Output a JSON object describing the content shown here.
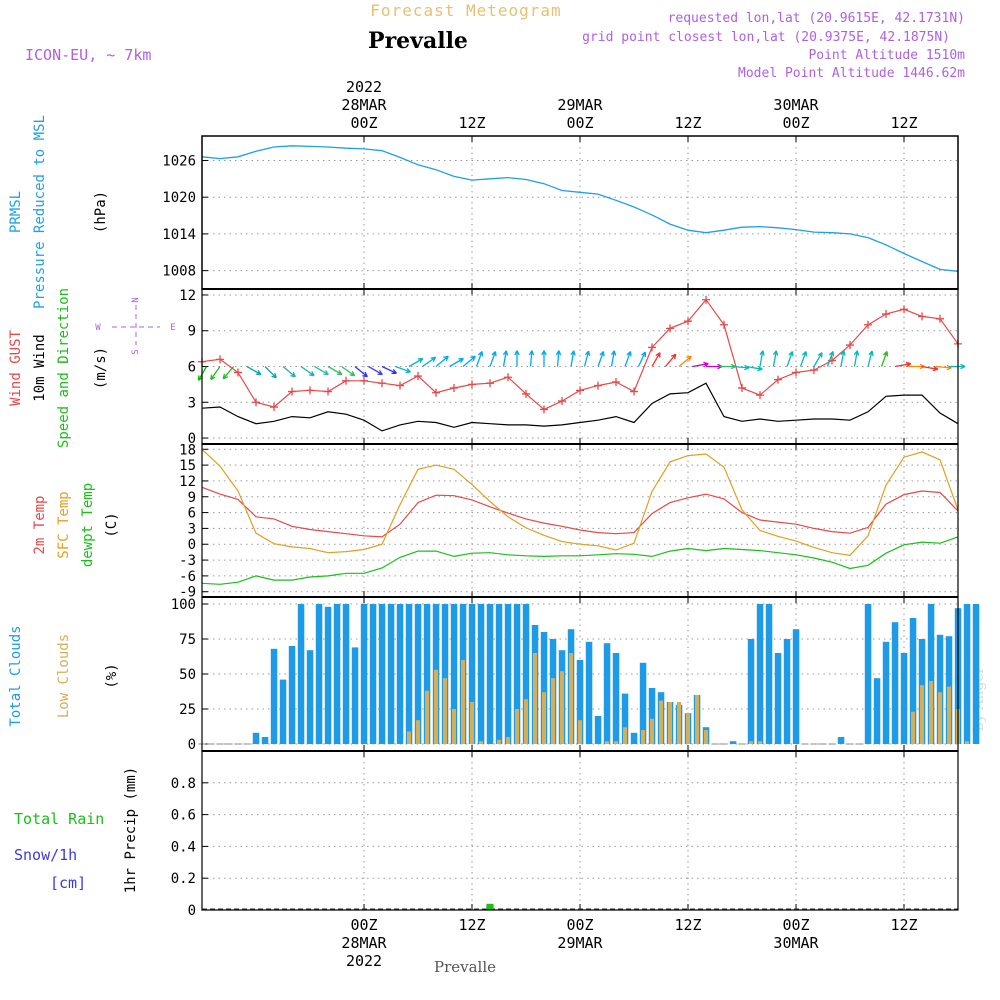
{
  "header": {
    "subtitle": "Forecast Meteogram",
    "location": "Prevalle",
    "model": "ICON-EU, ~ 7km",
    "requested": "requested lon,lat (20.9615E, 42.1731N)",
    "grid_point": "grid point closest lon,lat (20.9375E, 42.1875N)",
    "point_altitude": "Point Altitude 1510m",
    "model_altitude": "Model Point Altitude 1446.62m",
    "footer_location": "Prevalle",
    "watermark": "by Angel"
  },
  "time_axis": {
    "year": "2022",
    "hours_range": [
      -18,
      66
    ],
    "major_ticks": [
      {
        "h": 0,
        "label": "00Z",
        "date": "28MAR"
      },
      {
        "h": 12,
        "label": "12Z",
        "date": ""
      },
      {
        "h": 24,
        "label": "00Z",
        "date": "29MAR"
      },
      {
        "h": 36,
        "label": "12Z",
        "date": ""
      },
      {
        "h": 48,
        "label": "00Z",
        "date": "30MAR"
      },
      {
        "h": 60,
        "label": "12Z",
        "date": ""
      }
    ]
  },
  "compass": {
    "w": "W",
    "e": "E",
    "n": "N",
    "s": "S"
  },
  "colors": {
    "pressure": "#1ea0e6",
    "gust": "#e84848",
    "wind": "#000000",
    "temp": "#e84848",
    "sfc": "#e0a020",
    "dewpt": "#18c018",
    "total_cloud": "#1e9be6",
    "low_cloud": "#d4ae58",
    "rain": "#18c018",
    "snow": "#3a3ae0",
    "label_purple": "#b060e0",
    "title_gold": "#e8c070"
  },
  "chart_data": [
    {
      "type": "line",
      "panel": "pressure",
      "ylabel_parts": [
        "PRMSL",
        "Pressure Reduced to MSL"
      ],
      "unit": "(hPa)",
      "ylim": [
        1005,
        1030
      ],
      "yticks": [
        1008,
        1014,
        1020,
        1026
      ],
      "x": [
        -18,
        -16,
        -14,
        -12,
        -10,
        -8,
        -6,
        -4,
        -2,
        0,
        2,
        4,
        6,
        8,
        10,
        12,
        14,
        16,
        18,
        20,
        22,
        24,
        26,
        28,
        30,
        32,
        34,
        36,
        38,
        40,
        42,
        44,
        46,
        48,
        50,
        52,
        54,
        56,
        58,
        60,
        62,
        64,
        66
      ],
      "series": [
        {
          "values": [
            1026.6,
            1026.3,
            1026.6,
            1027.5,
            1028.2,
            1028.4,
            1028.3,
            1028.2,
            1028.0,
            1027.9,
            1027.6,
            1026.5,
            1025.3,
            1024.5,
            1023.4,
            1022.8,
            1023.0,
            1023.2,
            1022.9,
            1022.2,
            1021.1,
            1020.8,
            1020.5,
            1019.5,
            1018.4,
            1017.1,
            1015.6,
            1014.6,
            1014.2,
            1014.6,
            1015.1,
            1015.2,
            1015.0,
            1014.7,
            1014.3,
            1014.2,
            1014.0,
            1013.4,
            1012.2,
            1010.8,
            1009.5,
            1008.2,
            1007.9
          ]
        }
      ]
    },
    {
      "type": "line",
      "panel": "wind",
      "ylabel_parts": [
        "Wind GUST",
        "10m Wind",
        "Speed and Direction"
      ],
      "unit": "(m/s)",
      "ylim": [
        -0.5,
        12.5
      ],
      "yticks": [
        0,
        3,
        6,
        9,
        12
      ],
      "x": [
        -18,
        -16,
        -14,
        -12,
        -10,
        -8,
        -6,
        -4,
        -2,
        0,
        2,
        4,
        6,
        8,
        10,
        12,
        14,
        16,
        18,
        20,
        22,
        24,
        26,
        28,
        30,
        32,
        34,
        36,
        38,
        40,
        42,
        44,
        46,
        48,
        50,
        52,
        54,
        56,
        58,
        60,
        62,
        64,
        66
      ],
      "series": [
        {
          "name": "Wind GUST",
          "values": [
            6.4,
            6.6,
            5.5,
            3.0,
            2.6,
            3.9,
            4.0,
            3.9,
            4.8,
            4.8,
            4.6,
            4.4,
            5.2,
            3.8,
            4.2,
            4.5,
            4.6,
            5.1,
            3.7,
            2.4,
            3.1,
            4.0,
            4.4,
            4.7,
            3.9,
            7.6,
            9.2,
            9.8,
            11.6,
            9.5,
            4.2,
            3.6,
            4.9,
            5.5,
            5.7,
            6.5,
            7.8,
            9.5,
            10.4,
            10.8,
            10.2,
            10.0,
            7.9
          ]
        },
        {
          "name": "10m Wind",
          "values": [
            2.5,
            2.6,
            1.8,
            1.2,
            1.4,
            1.8,
            1.7,
            2.2,
            2.0,
            1.5,
            0.6,
            1.1,
            1.4,
            1.3,
            0.9,
            1.3,
            1.2,
            1.1,
            1.1,
            1.0,
            1.1,
            1.3,
            1.5,
            1.8,
            1.3,
            2.9,
            3.7,
            3.8,
            4.6,
            1.8,
            1.4,
            1.6,
            1.4,
            1.5,
            1.6,
            1.6,
            1.5,
            2.2,
            3.5,
            3.6,
            3.6,
            2.1,
            1.2
          ]
        }
      ],
      "barbs": {
        "x": [
          -17.5,
          -16,
          -14.5,
          -13,
          -11,
          -9,
          -7,
          -5.5,
          -4,
          -2.5,
          -1,
          0.5,
          2,
          3.5,
          5,
          6.5,
          8,
          9.5,
          11,
          12.5,
          14,
          15.5,
          17,
          18.5,
          20,
          21.5,
          23,
          24.5,
          26,
          27.5,
          29,
          30.5,
          32,
          33.5,
          35,
          36.5,
          38,
          39.5,
          41,
          42.5,
          44,
          45.5,
          47,
          48.5,
          50,
          51.5,
          53,
          54.5,
          56,
          57.5,
          59,
          60.5,
          62,
          63.5,
          65
        ],
        "dir": [
          30,
          35,
          40,
          300,
          315,
          310,
          305,
          300,
          300,
          305,
          310,
          300,
          295,
          290,
          240,
          235,
          230,
          240,
          230,
          200,
          200,
          190,
          180,
          185,
          180,
          185,
          190,
          195,
          200,
          190,
          200,
          205,
          210,
          220,
          230,
          260,
          270,
          270,
          275,
          280,
          190,
          190,
          200,
          200,
          210,
          200,
          190,
          190,
          195,
          200,
          260,
          270,
          280,
          275,
          270
        ],
        "color": [
          "#00c000",
          "#20c020",
          "#20c020",
          "#00aaaa",
          "#00aaaa",
          "#20b0b0",
          "#20b0b0",
          "#30c0a0",
          "#30c060",
          "#30c060",
          "#3030ff",
          "#4040ff",
          "#3030ff",
          "#00bbbb",
          "#00bbbb",
          "#00aaee",
          "#00aaee",
          "#00aaee",
          "#00aaee",
          "#00aaee",
          "#00aaee",
          "#00aaee",
          "#00aaee",
          "#00aaee",
          "#00aaee",
          "#00aaee",
          "#00aaee",
          "#00aaee",
          "#00aaee",
          "#00aaee",
          "#00aaee",
          "#00aaee",
          "#ff3030",
          "#ee3030",
          "#ff8800",
          "#cc00cc",
          "#cc00cc",
          "#30c060",
          "#00bbbb",
          "#00bbbb",
          "#00bbbb",
          "#00bbbb",
          "#00bbbb",
          "#00bbbb",
          "#00bbbb",
          "#00bbbb",
          "#00bbbb",
          "#00bbbb",
          "#00bbbb",
          "#20c020",
          "#ee3030",
          "#ff8800",
          "#ee3030",
          "#ff8800",
          "#00bbbb"
        ]
      }
    },
    {
      "type": "line",
      "panel": "temperature",
      "ylabel_parts": [
        "2m Temp",
        "SFC Temp",
        "dewpt Temp"
      ],
      "unit": "(C)",
      "ylim": [
        -10,
        19
      ],
      "yticks": [
        -9,
        -6,
        -3,
        0,
        3,
        6,
        9,
        12,
        15,
        18
      ],
      "x": [
        -18,
        -16,
        -14,
        -12,
        -10,
        -8,
        -6,
        -4,
        -2,
        0,
        2,
        4,
        6,
        8,
        10,
        12,
        14,
        16,
        18,
        20,
        22,
        24,
        26,
        28,
        30,
        32,
        34,
        36,
        38,
        40,
        42,
        44,
        46,
        48,
        50,
        52,
        54,
        56,
        58,
        60,
        62,
        64,
        66
      ],
      "series": [
        {
          "name": "2m Temp",
          "values": [
            10.8,
            9.5,
            8.5,
            5.2,
            4.8,
            3.4,
            2.8,
            2.4,
            2.0,
            1.6,
            1.4,
            3.8,
            7.9,
            9.3,
            9.2,
            8.4,
            7.1,
            5.9,
            4.8,
            4.0,
            3.4,
            2.7,
            2.2,
            2.0,
            2.2,
            5.8,
            7.9,
            8.8,
            9.5,
            8.6,
            6.0,
            4.6,
            4.2,
            3.8,
            3.0,
            2.4,
            2.1,
            3.2,
            7.6,
            9.4,
            10.1,
            9.8,
            6.3
          ]
        },
        {
          "name": "SFC Temp",
          "values": [
            18.0,
            14.8,
            10.1,
            2.1,
            0.1,
            -0.5,
            -0.8,
            -1.6,
            -1.4,
            -1.0,
            0.0,
            7.5,
            14.2,
            15.0,
            14.2,
            11.3,
            8.1,
            5.2,
            3.1,
            1.7,
            0.5,
            0.0,
            -0.3,
            -1.1,
            0.2,
            10.0,
            15.6,
            16.8,
            17.1,
            14.6,
            6.5,
            2.6,
            1.5,
            0.6,
            -0.6,
            -1.6,
            -2.1,
            1.6,
            11.2,
            16.5,
            17.5,
            16.0,
            6.5
          ]
        },
        {
          "name": "dewpt Temp",
          "values": [
            -7.4,
            -7.6,
            -7.2,
            -6.0,
            -6.8,
            -6.8,
            -6.2,
            -6.0,
            -5.5,
            -5.5,
            -4.5,
            -2.5,
            -1.3,
            -1.3,
            -2.3,
            -1.7,
            -1.6,
            -2.0,
            -2.2,
            -2.3,
            -2.2,
            -2.2,
            -2.0,
            -1.8,
            -1.9,
            -2.3,
            -1.3,
            -0.8,
            -1.2,
            -0.8,
            -1.0,
            -1.2,
            -1.6,
            -2.0,
            -2.6,
            -3.4,
            -4.6,
            -4.0,
            -1.7,
            -0.1,
            0.4,
            0.2,
            1.4
          ]
        }
      ]
    },
    {
      "type": "bar",
      "panel": "clouds",
      "ylabel_parts": [
        "Total Clouds",
        "Low Clouds"
      ],
      "unit": "(%)",
      "ylim": [
        -5,
        105
      ],
      "yticks": [
        0,
        25,
        50,
        75,
        100
      ],
      "x_start": -18,
      "x_step": 1,
      "series": [
        {
          "name": "Total Clouds",
          "values": [
            0,
            0,
            0,
            0,
            0,
            0,
            8,
            5,
            68,
            46,
            70,
            100,
            67,
            100,
            98,
            100,
            100,
            69,
            100,
            100,
            100,
            100,
            100,
            100,
            100,
            100,
            100,
            100,
            100,
            100,
            100,
            100,
            100,
            100,
            100,
            100,
            100,
            85,
            80,
            75,
            67,
            82,
            60,
            73,
            20,
            72,
            65,
            36,
            8,
            58,
            40,
            37,
            30,
            28,
            22,
            35,
            12,
            0,
            0,
            2,
            0,
            75,
            100,
            100,
            65,
            75,
            82,
            0,
            0,
            0,
            0,
            5,
            0,
            0,
            100,
            47,
            73,
            87,
            65,
            90,
            75,
            100,
            78,
            77,
            97,
            100,
            100
          ]
        },
        {
          "name": "Low Clouds",
          "values": [
            0,
            0,
            0,
            0,
            0,
            0,
            0,
            0,
            0,
            0,
            0,
            0,
            0,
            0,
            0,
            0,
            0,
            0,
            0,
            0,
            0,
            0,
            0,
            9,
            17,
            38,
            53,
            47,
            25,
            60,
            30,
            2,
            0,
            3,
            5,
            25,
            32,
            65,
            37,
            47,
            52,
            65,
            17,
            0,
            0,
            2,
            2,
            12,
            0,
            10,
            18,
            31,
            30,
            30,
            22,
            35,
            10,
            0,
            0,
            0,
            0,
            2,
            2,
            0,
            0,
            0,
            0,
            0,
            0,
            0,
            0,
            0,
            0,
            0,
            0,
            0,
            0,
            0,
            0,
            23,
            42,
            45,
            37,
            41,
            25,
            2,
            0
          ]
        }
      ]
    },
    {
      "type": "bar",
      "panel": "precip",
      "ylabel_parts": [
        "Total Rain",
        "Snow/1h",
        "[cm]"
      ],
      "ylabel": "1hr Precip (mm)",
      "ylim": [
        0,
        1.0
      ],
      "yticks": [
        0,
        0.2,
        0.4,
        0.6,
        0.8
      ],
      "ytick_labels": [
        "0",
        "0.2",
        "0.4",
        "0.6",
        "0.8"
      ],
      "x_start": -18,
      "x_step": 1,
      "series": [
        {
          "name": "Total Rain",
          "values": [
            0,
            0,
            0,
            0,
            0,
            0,
            0,
            0,
            0,
            0,
            0,
            0,
            0,
            0,
            0,
            0,
            0,
            0,
            0,
            0,
            0,
            0,
            0,
            0,
            0,
            0,
            0,
            0,
            0,
            0,
            0,
            0,
            0.02,
            0,
            0,
            0,
            0,
            0,
            0,
            0,
            0,
            0,
            0,
            0,
            0,
            0,
            0,
            0,
            0,
            0,
            0,
            0,
            0,
            0,
            0,
            0,
            0,
            0,
            0,
            0,
            0,
            0,
            0,
            0,
            0,
            0,
            0,
            0,
            0,
            0,
            0,
            0,
            0,
            0,
            0,
            0,
            0,
            0,
            0,
            0,
            0,
            0,
            0,
            0,
            0,
            0,
            0
          ]
        },
        {
          "name": "Snow/1h",
          "values": [
            0,
            0,
            0,
            0,
            0,
            0,
            0,
            0,
            0,
            0,
            0,
            0,
            0,
            0,
            0,
            0,
            0,
            0,
            0,
            0,
            0,
            0,
            0,
            0,
            0,
            0,
            0,
            0,
            0,
            0,
            0,
            0,
            0,
            0,
            0,
            0,
            0,
            0,
            0,
            0,
            0,
            0,
            0,
            0,
            0,
            0,
            0,
            0,
            0,
            0,
            0,
            0,
            0,
            0,
            0,
            0,
            0,
            0,
            0,
            0,
            0,
            0,
            0,
            0,
            0,
            0,
            0,
            0,
            0,
            0,
            0,
            0,
            0,
            0,
            0,
            0,
            0,
            0,
            0,
            0,
            0,
            0,
            0,
            0,
            0,
            0,
            0
          ]
        }
      ]
    }
  ]
}
